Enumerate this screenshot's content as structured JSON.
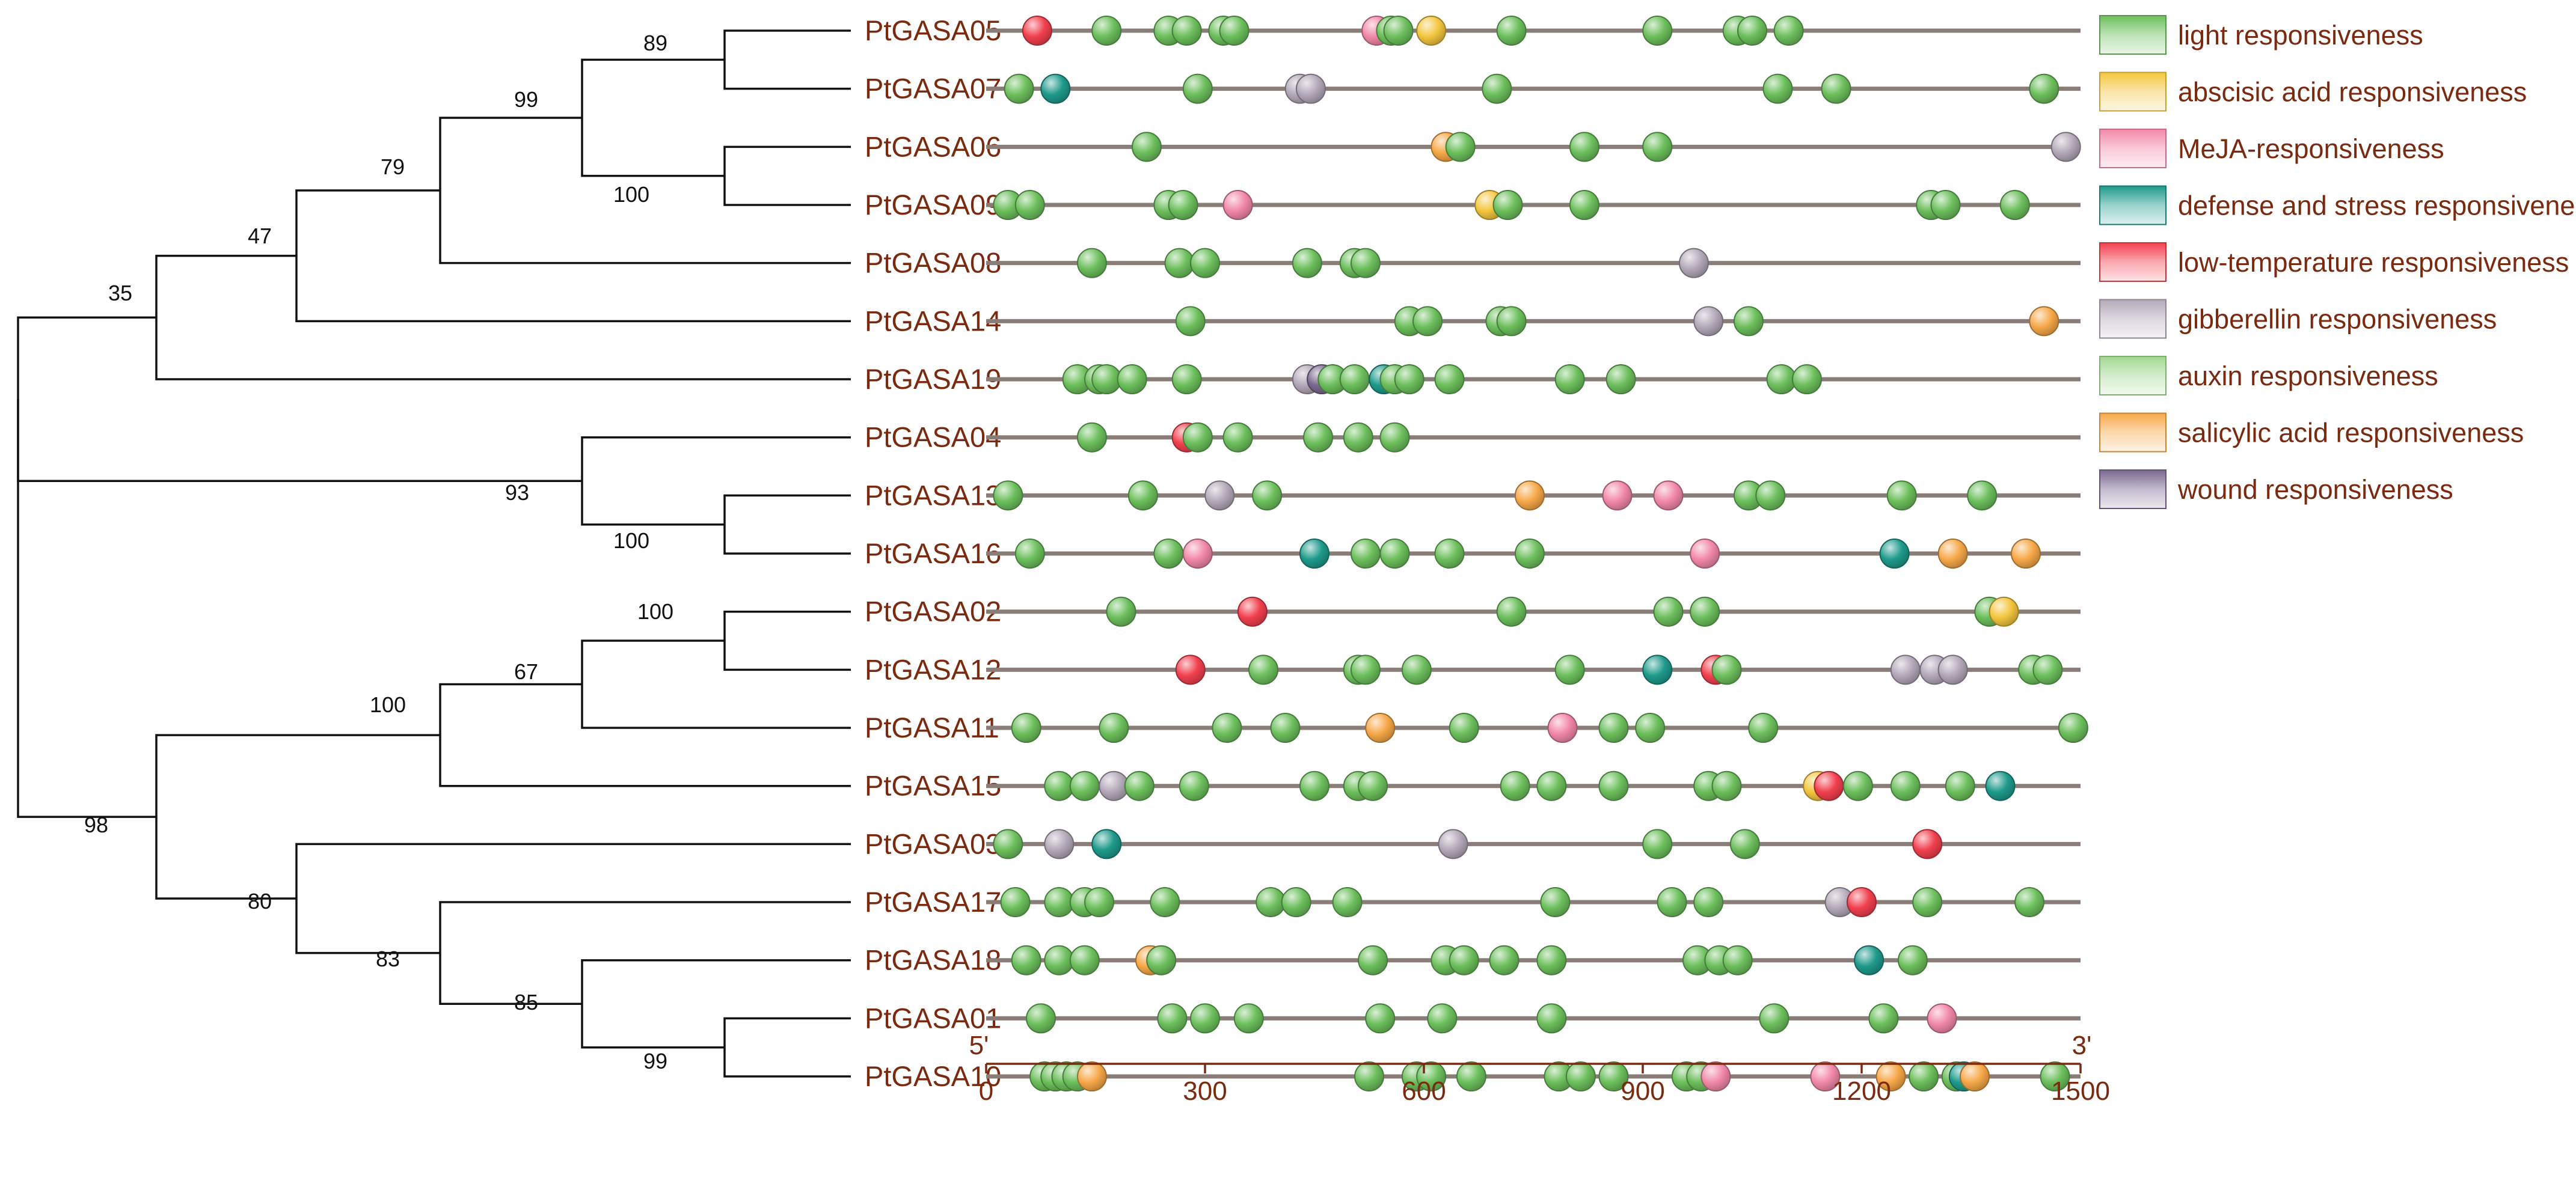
{
  "axis": {
    "min": 0,
    "max": 1500,
    "ticks": [
      0,
      300,
      600,
      900,
      1200,
      1500
    ],
    "start_label": "5'",
    "end_label": "3'"
  },
  "motif_types": [
    {
      "key": "light",
      "label": "light responsiveness",
      "color": "#6cbf5c"
    },
    {
      "key": "aba",
      "label": "abscisic acid responsiveness",
      "color": "#f4c63e"
    },
    {
      "key": "meja",
      "label": "MeJA-responsiveness",
      "color": "#f288a8"
    },
    {
      "key": "defense",
      "label": "defense and stress responsiveness",
      "color": "#1e9a8c"
    },
    {
      "key": "lowtemp",
      "label": "low-temperature responsiveness",
      "color": "#f2404e"
    },
    {
      "key": "gib",
      "label": "gibberellin responsiveness",
      "color": "#b3a8b8"
    },
    {
      "key": "auxin",
      "label": "auxin responsiveness",
      "color": "#a0d890"
    },
    {
      "key": "sa",
      "label": "salicylic acid responsiveness",
      "color": "#f7a848"
    },
    {
      "key": "wound",
      "label": "wound responsiveness",
      "color": "#7a6890"
    }
  ],
  "genes": [
    {
      "name": "PtGASA05",
      "motifs": [
        [
          "lowtemp",
          70
        ],
        [
          "light",
          165
        ],
        [
          "light",
          250
        ],
        [
          "light",
          275
        ],
        [
          "light",
          325
        ],
        [
          "light",
          340
        ],
        [
          "meja",
          535
        ],
        [
          "light",
          555
        ],
        [
          "light",
          565
        ],
        [
          "aba",
          610
        ],
        [
          "light",
          720
        ],
        [
          "light",
          920
        ],
        [
          "light",
          1030
        ],
        [
          "light",
          1050
        ],
        [
          "light",
          1100
        ]
      ]
    },
    {
      "name": "PtGASA07",
      "motifs": [
        [
          "light",
          45
        ],
        [
          "defense",
          95
        ],
        [
          "light",
          290
        ],
        [
          "gib",
          430
        ],
        [
          "gib",
          445
        ],
        [
          "light",
          700
        ],
        [
          "light",
          1085
        ],
        [
          "light",
          1165
        ],
        [
          "light",
          1450
        ]
      ]
    },
    {
      "name": "PtGASA06",
      "motifs": [
        [
          "light",
          220
        ],
        [
          "sa",
          630
        ],
        [
          "light",
          650
        ],
        [
          "light",
          820
        ],
        [
          "light",
          920
        ],
        [
          "gib",
          1480
        ]
      ]
    },
    {
      "name": "PtGASA09",
      "motifs": [
        [
          "light",
          30
        ],
        [
          "light",
          60
        ],
        [
          "light",
          250
        ],
        [
          "light",
          270
        ],
        [
          "meja",
          345
        ],
        [
          "aba",
          690
        ],
        [
          "light",
          715
        ],
        [
          "light",
          820
        ],
        [
          "light",
          1295
        ],
        [
          "light",
          1315
        ],
        [
          "light",
          1410
        ]
      ]
    },
    {
      "name": "PtGASA08",
      "motifs": [
        [
          "light",
          145
        ],
        [
          "light",
          265
        ],
        [
          "light",
          300
        ],
        [
          "light",
          440
        ],
        [
          "light",
          505
        ],
        [
          "light",
          520
        ],
        [
          "gib",
          970
        ]
      ]
    },
    {
      "name": "PtGASA14",
      "motifs": [
        [
          "light",
          280
        ],
        [
          "light",
          580
        ],
        [
          "light",
          605
        ],
        [
          "light",
          705
        ],
        [
          "light",
          720
        ],
        [
          "gib",
          990
        ],
        [
          "light",
          1045
        ],
        [
          "sa",
          1450
        ]
      ]
    },
    {
      "name": "PtGASA19",
      "motifs": [
        [
          "light",
          125
        ],
        [
          "light",
          155
        ],
        [
          "light",
          165
        ],
        [
          "light",
          200
        ],
        [
          "light",
          275
        ],
        [
          "gib",
          440
        ],
        [
          "wound",
          460
        ],
        [
          "light",
          475
        ],
        [
          "light",
          505
        ],
        [
          "defense",
          545
        ],
        [
          "light",
          560
        ],
        [
          "light",
          580
        ],
        [
          "light",
          635
        ],
        [
          "light",
          800
        ],
        [
          "light",
          870
        ],
        [
          "light",
          1090
        ],
        [
          "light",
          1125
        ]
      ]
    },
    {
      "name": "PtGASA04",
      "motifs": [
        [
          "lowtemp",
          275
        ],
        [
          "light",
          290
        ],
        [
          "light",
          145
        ],
        [
          "light",
          345
        ],
        [
          "light",
          455
        ],
        [
          "light",
          510
        ],
        [
          "light",
          560
        ]
      ]
    },
    {
      "name": "PtGASA13",
      "motifs": [
        [
          "light",
          30
        ],
        [
          "light",
          215
        ],
        [
          "gib",
          320
        ],
        [
          "light",
          385
        ],
        [
          "sa",
          745
        ],
        [
          "meja",
          865
        ],
        [
          "meja",
          935
        ],
        [
          "light",
          1045
        ],
        [
          "light",
          1075
        ],
        [
          "light",
          1255
        ],
        [
          "light",
          1365
        ]
      ]
    },
    {
      "name": "PtGASA16",
      "motifs": [
        [
          "light",
          60
        ],
        [
          "light",
          250
        ],
        [
          "meja",
          290
        ],
        [
          "defense",
          450
        ],
        [
          "light",
          520
        ],
        [
          "light",
          560
        ],
        [
          "light",
          635
        ],
        [
          "light",
          745
        ],
        [
          "meja",
          985
        ],
        [
          "defense",
          1245
        ],
        [
          "sa",
          1325
        ],
        [
          "sa",
          1425
        ]
      ]
    },
    {
      "name": "PtGASA02",
      "motifs": [
        [
          "light",
          185
        ],
        [
          "lowtemp",
          365
        ],
        [
          "light",
          720
        ],
        [
          "light",
          935
        ],
        [
          "light",
          985
        ],
        [
          "light",
          1375
        ],
        [
          "aba",
          1395
        ]
      ]
    },
    {
      "name": "PtGASA12",
      "motifs": [
        [
          "lowtemp",
          280
        ],
        [
          "light",
          380
        ],
        [
          "light",
          510
        ],
        [
          "light",
          520
        ],
        [
          "light",
          590
        ],
        [
          "light",
          800
        ],
        [
          "defense",
          920
        ],
        [
          "lowtemp",
          1000
        ],
        [
          "light",
          1015
        ],
        [
          "gib",
          1260
        ],
        [
          "gib",
          1300
        ],
        [
          "gib",
          1325
        ],
        [
          "light",
          1435
        ],
        [
          "light",
          1455
        ]
      ]
    },
    {
      "name": "PtGASA11",
      "motifs": [
        [
          "light",
          55
        ],
        [
          "light",
          175
        ],
        [
          "light",
          330
        ],
        [
          "light",
          410
        ],
        [
          "sa",
          540
        ],
        [
          "light",
          655
        ],
        [
          "meja",
          790
        ],
        [
          "light",
          860
        ],
        [
          "light",
          910
        ],
        [
          "light",
          1065
        ],
        [
          "light",
          1490
        ]
      ]
    },
    {
      "name": "PtGASA15",
      "motifs": [
        [
          "light",
          100
        ],
        [
          "light",
          135
        ],
        [
          "gib",
          175
        ],
        [
          "light",
          210
        ],
        [
          "light",
          285
        ],
        [
          "light",
          450
        ],
        [
          "light",
          510
        ],
        [
          "light",
          530
        ],
        [
          "light",
          725
        ],
        [
          "light",
          775
        ],
        [
          "light",
          860
        ],
        [
          "light",
          990
        ],
        [
          "light",
          1015
        ],
        [
          "aba",
          1140
        ],
        [
          "lowtemp",
          1155
        ],
        [
          "light",
          1195
        ],
        [
          "light",
          1260
        ],
        [
          "light",
          1335
        ],
        [
          "defense",
          1390
        ]
      ]
    },
    {
      "name": "PtGASA03",
      "motifs": [
        [
          "light",
          30
        ],
        [
          "gib",
          100
        ],
        [
          "defense",
          165
        ],
        [
          "gib",
          640
        ],
        [
          "light",
          920
        ],
        [
          "light",
          1040
        ],
        [
          "lowtemp",
          1290
        ]
      ]
    },
    {
      "name": "PtGASA17",
      "motifs": [
        [
          "light",
          40
        ],
        [
          "light",
          100
        ],
        [
          "light",
          135
        ],
        [
          "light",
          155
        ],
        [
          "light",
          245
        ],
        [
          "light",
          390
        ],
        [
          "light",
          425
        ],
        [
          "light",
          495
        ],
        [
          "light",
          780
        ],
        [
          "light",
          940
        ],
        [
          "light",
          990
        ],
        [
          "gib",
          1170
        ],
        [
          "lowtemp",
          1200
        ],
        [
          "light",
          1290
        ],
        [
          "light",
          1430
        ]
      ]
    },
    {
      "name": "PtGASA18",
      "motifs": [
        [
          "light",
          55
        ],
        [
          "light",
          100
        ],
        [
          "light",
          135
        ],
        [
          "sa",
          225
        ],
        [
          "light",
          240
        ],
        [
          "light",
          530
        ],
        [
          "light",
          630
        ],
        [
          "light",
          655
        ],
        [
          "light",
          710
        ],
        [
          "light",
          775
        ],
        [
          "light",
          975
        ],
        [
          "light",
          1005
        ],
        [
          "light",
          1030
        ],
        [
          "defense",
          1210
        ],
        [
          "light",
          1270
        ]
      ]
    },
    {
      "name": "PtGASA01",
      "motifs": [
        [
          "light",
          75
        ],
        [
          "light",
          255
        ],
        [
          "light",
          300
        ],
        [
          "light",
          360
        ],
        [
          "light",
          540
        ],
        [
          "light",
          625
        ],
        [
          "light",
          775
        ],
        [
          "light",
          1080
        ],
        [
          "light",
          1230
        ],
        [
          "meja",
          1310
        ]
      ]
    },
    {
      "name": "PtGASA10",
      "motifs": [
        [
          "light",
          80
        ],
        [
          "light",
          95
        ],
        [
          "light",
          110
        ],
        [
          "light",
          125
        ],
        [
          "sa",
          145
        ],
        [
          "light",
          525
        ],
        [
          "light",
          590
        ],
        [
          "light",
          610
        ],
        [
          "light",
          665
        ],
        [
          "light",
          785
        ],
        [
          "light",
          815
        ],
        [
          "light",
          860
        ],
        [
          "light",
          960
        ],
        [
          "light",
          980
        ],
        [
          "meja",
          1000
        ],
        [
          "meja",
          1150
        ],
        [
          "sa",
          1240
        ],
        [
          "light",
          1285
        ],
        [
          "light",
          1330
        ],
        [
          "defense",
          1340
        ],
        [
          "sa",
          1355
        ],
        [
          "light",
          1465
        ]
      ]
    }
  ],
  "tree": {
    "bootstrap_values": [
      "89",
      "99",
      "79",
      "100",
      "47",
      "35",
      "93",
      "100",
      "100",
      "67",
      "100",
      "98",
      "80",
      "83",
      "85",
      "99"
    ]
  }
}
